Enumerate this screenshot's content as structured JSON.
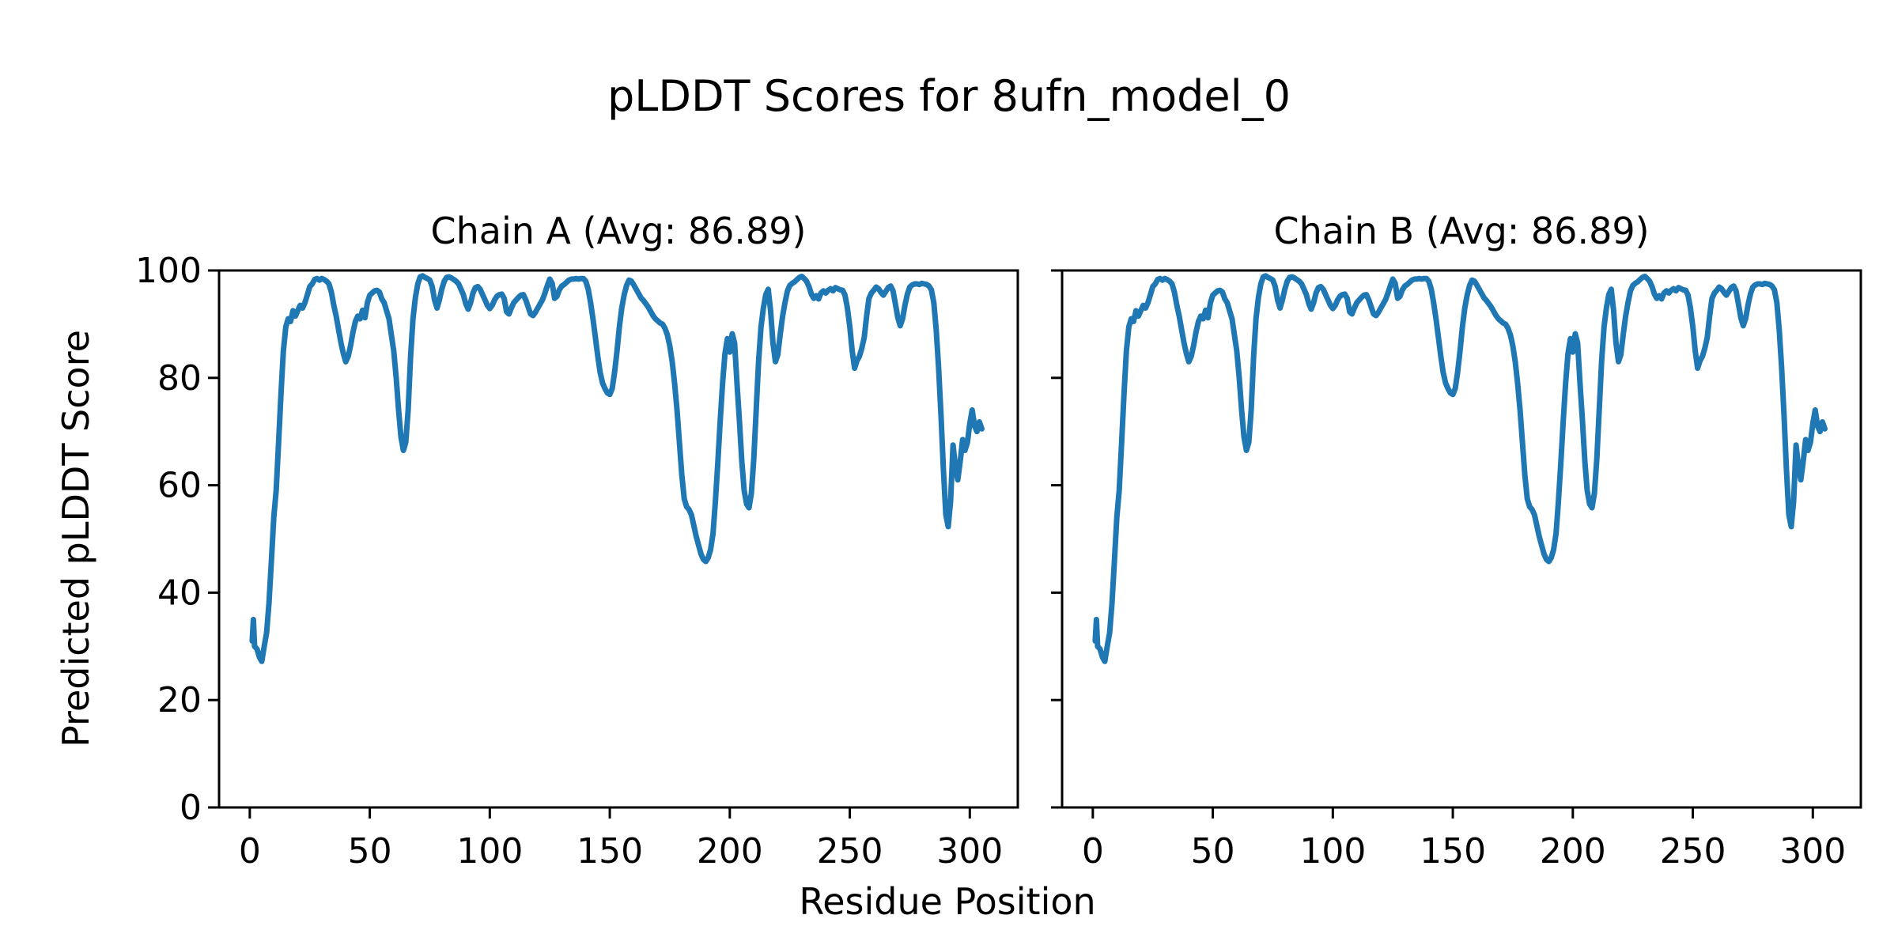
{
  "figure": {
    "title": "pLDDT Scores for 8ufn_model_0",
    "x_axis_label": "Residue Position",
    "y_axis_label": "Predicted pLDDT Score"
  },
  "chart_data": {
    "type": "line",
    "title": "pLDDT Scores for 8ufn_model_0",
    "xlabel": "Residue Position",
    "ylabel": "Predicted pLDDT Score",
    "line_color": "#1f77b4",
    "background": "#ffffff",
    "grid": false,
    "legend_position": "none",
    "xlim": [
      -12.8,
      320
    ],
    "ylim": [
      0,
      100
    ],
    "xticks": [
      0,
      50,
      100,
      150,
      200,
      250,
      300
    ],
    "yticks": [
      0,
      20,
      40,
      60,
      80,
      100
    ],
    "panels": [
      {
        "title": "Chain A (Avg: 86.89)",
        "chain": "A",
        "avg": 86.89,
        "show_y_tick_labels": true
      },
      {
        "title": "Chain B (Avg: 86.89)",
        "chain": "B",
        "avg": 86.89,
        "show_y_tick_labels": false
      }
    ],
    "note": "Both panels plot the identical residue/pLDDT series (homodimer chains A and B).",
    "points": [
      [
        1,
        31
      ],
      [
        1.5,
        35
      ],
      [
        2,
        30
      ],
      [
        3,
        29.5
      ],
      [
        4,
        28
      ],
      [
        5,
        27.2
      ],
      [
        6,
        30
      ],
      [
        7,
        32.5
      ],
      [
        8,
        38
      ],
      [
        9,
        46
      ],
      [
        10,
        54
      ],
      [
        11,
        59
      ],
      [
        12,
        68
      ],
      [
        13,
        77
      ],
      [
        14,
        85
      ],
      [
        15,
        89.5
      ],
      [
        16,
        91
      ],
      [
        17,
        90.5
      ],
      [
        18,
        92.5
      ],
      [
        19,
        91.5
      ],
      [
        20,
        92.5
      ],
      [
        21,
        93.5
      ],
      [
        22,
        93
      ],
      [
        23,
        94
      ],
      [
        24,
        95.5
      ],
      [
        25,
        97
      ],
      [
        26,
        97.5
      ],
      [
        27,
        98.3
      ],
      [
        28,
        98.5
      ],
      [
        29,
        98.2
      ],
      [
        30,
        98.5
      ],
      [
        31,
        98.3
      ],
      [
        32,
        98
      ],
      [
        33,
        97.5
      ],
      [
        34,
        96
      ],
      [
        35,
        93.5
      ],
      [
        36,
        91.5
      ],
      [
        37,
        89
      ],
      [
        38,
        86.5
      ],
      [
        39,
        84.5
      ],
      [
        40,
        83
      ],
      [
        41,
        84
      ],
      [
        42,
        86
      ],
      [
        43,
        88.5
      ],
      [
        44,
        90.5
      ],
      [
        45,
        91.5
      ],
      [
        46,
        91
      ],
      [
        47,
        92.6
      ],
      [
        48,
        91.2
      ],
      [
        49,
        94
      ],
      [
        50,
        95.4
      ],
      [
        51,
        95.8
      ],
      [
        52,
        96.2
      ],
      [
        53,
        96.3
      ],
      [
        54,
        96
      ],
      [
        55,
        94.7
      ],
      [
        56,
        94
      ],
      [
        57,
        92.5
      ],
      [
        58,
        91
      ],
      [
        59,
        88
      ],
      [
        60,
        85
      ],
      [
        61,
        80
      ],
      [
        62,
        74
      ],
      [
        63,
        69
      ],
      [
        64,
        66.5
      ],
      [
        65,
        68
      ],
      [
        66,
        74
      ],
      [
        67,
        84
      ],
      [
        68,
        91
      ],
      [
        69,
        95
      ],
      [
        70,
        97.5
      ],
      [
        71,
        98.8
      ],
      [
        72,
        99
      ],
      [
        73,
        98.7
      ],
      [
        74,
        98.5
      ],
      [
        75,
        98.2
      ],
      [
        76,
        97
      ],
      [
        77,
        94.5
      ],
      [
        78,
        93
      ],
      [
        79,
        94.5
      ],
      [
        80,
        96.5
      ],
      [
        81,
        98
      ],
      [
        82,
        98.7
      ],
      [
        83,
        98.8
      ],
      [
        84,
        98.6
      ],
      [
        85,
        98.3
      ],
      [
        86,
        98
      ],
      [
        87,
        97.5
      ],
      [
        88,
        96.5
      ],
      [
        89,
        95.5
      ],
      [
        90,
        93.8
      ],
      [
        91,
        92.8
      ],
      [
        92,
        94
      ],
      [
        93,
        95.8
      ],
      [
        94,
        96.8
      ],
      [
        95,
        97
      ],
      [
        96,
        96.5
      ],
      [
        97,
        95.5
      ],
      [
        98,
        94.5
      ],
      [
        99,
        93.5
      ],
      [
        100,
        92.9
      ],
      [
        101,
        93.5
      ],
      [
        102,
        94.5
      ],
      [
        103,
        95.2
      ],
      [
        104,
        95.5
      ],
      [
        105,
        95.6
      ],
      [
        106,
        94.8
      ],
      [
        107,
        92.3
      ],
      [
        108,
        91.9
      ],
      [
        109,
        93
      ],
      [
        110,
        94
      ],
      [
        111,
        94.5
      ],
      [
        112,
        95
      ],
      [
        113,
        95.4
      ],
      [
        114,
        95.5
      ],
      [
        115,
        94.5
      ],
      [
        116,
        93.2
      ],
      [
        117,
        91.9
      ],
      [
        118,
        91.6
      ],
      [
        119,
        92.2
      ],
      [
        120,
        93
      ],
      [
        121,
        93.8
      ],
      [
        122,
        94.6
      ],
      [
        123,
        95.8
      ],
      [
        124,
        97.2
      ],
      [
        125,
        98.4
      ],
      [
        126,
        97.6
      ],
      [
        127,
        94.8
      ],
      [
        128,
        95.2
      ],
      [
        129,
        96.4
      ],
      [
        130,
        97.1
      ],
      [
        131,
        97.4
      ],
      [
        132,
        97.8
      ],
      [
        133,
        98.2
      ],
      [
        134,
        98.4
      ],
      [
        135,
        98.4
      ],
      [
        136,
        98.5
      ],
      [
        137,
        98.4
      ],
      [
        138,
        98.5
      ],
      [
        139,
        98.5
      ],
      [
        140,
        98
      ],
      [
        141,
        96.5
      ],
      [
        142,
        94
      ],
      [
        143,
        91
      ],
      [
        144,
        87.5
      ],
      [
        145,
        84
      ],
      [
        146,
        81
      ],
      [
        147,
        79
      ],
      [
        148,
        78
      ],
      [
        149,
        77.2
      ],
      [
        150,
        76.9
      ],
      [
        151,
        78
      ],
      [
        152,
        81
      ],
      [
        153,
        85
      ],
      [
        154,
        89.5
      ],
      [
        155,
        93
      ],
      [
        156,
        95.5
      ],
      [
        157,
        97.2
      ],
      [
        158,
        98.2
      ],
      [
        159,
        98
      ],
      [
        160,
        97.3
      ],
      [
        161,
        96.5
      ],
      [
        162,
        95.7
      ],
      [
        163,
        94.9
      ],
      [
        164,
        94.4
      ],
      [
        165,
        93.8
      ],
      [
        166,
        93.2
      ],
      [
        167,
        92.4
      ],
      [
        168,
        91.6
      ],
      [
        169,
        91
      ],
      [
        170,
        90.6
      ],
      [
        171,
        90.2
      ],
      [
        172,
        90
      ],
      [
        173,
        89.2
      ],
      [
        174,
        88
      ],
      [
        175,
        86
      ],
      [
        176,
        83
      ],
      [
        177,
        79
      ],
      [
        178,
        74
      ],
      [
        179,
        68
      ],
      [
        180,
        62
      ],
      [
        181,
        57.5
      ],
      [
        182,
        56
      ],
      [
        183,
        55.5
      ],
      [
        184,
        54.5
      ],
      [
        185,
        52.5
      ],
      [
        186,
        50.5
      ],
      [
        187,
        48.8
      ],
      [
        188,
        47.2
      ],
      [
        189,
        46.2
      ],
      [
        190,
        45.8
      ],
      [
        191,
        46.5
      ],
      [
        192,
        48
      ],
      [
        193,
        51
      ],
      [
        194,
        57
      ],
      [
        195,
        64
      ],
      [
        196,
        72
      ],
      [
        197,
        79
      ],
      [
        198,
        84.5
      ],
      [
        199,
        87.3
      ],
      [
        200,
        84.8
      ],
      [
        201,
        88.2
      ],
      [
        202,
        86.5
      ],
      [
        203,
        79
      ],
      [
        204,
        72
      ],
      [
        205,
        64.5
      ],
      [
        206,
        59
      ],
      [
        207,
        56.5
      ],
      [
        208,
        55.8
      ],
      [
        209,
        58.5
      ],
      [
        210,
        65
      ],
      [
        211,
        74
      ],
      [
        212,
        83
      ],
      [
        213,
        89.5
      ],
      [
        214,
        93
      ],
      [
        215,
        95.5
      ],
      [
        216,
        96.5
      ],
      [
        217,
        92.5
      ],
      [
        218,
        86.5
      ],
      [
        219,
        83
      ],
      [
        220,
        84.3
      ],
      [
        221,
        88
      ],
      [
        222,
        91.5
      ],
      [
        223,
        94
      ],
      [
        224,
        96.2
      ],
      [
        225,
        97.2
      ],
      [
        226,
        97.6
      ],
      [
        227,
        97.9
      ],
      [
        228,
        98.3
      ],
      [
        229,
        98.7
      ],
      [
        230,
        98.9
      ],
      [
        231,
        98.5
      ],
      [
        232,
        98
      ],
      [
        233,
        97
      ],
      [
        234,
        95.6
      ],
      [
        235,
        94.8
      ],
      [
        236,
        95.3
      ],
      [
        237,
        94.7
      ],
      [
        238,
        95.8
      ],
      [
        239,
        96.2
      ],
      [
        240,
        95.8
      ],
      [
        241,
        96.3
      ],
      [
        242,
        96.6
      ],
      [
        243,
        96.2
      ],
      [
        244,
        96.8
      ],
      [
        245,
        96.6
      ],
      [
        246,
        96.4
      ],
      [
        247,
        96.3
      ],
      [
        248,
        95.4
      ],
      [
        249,
        93
      ],
      [
        250,
        89.5
      ],
      [
        251,
        85
      ],
      [
        252,
        81.8
      ],
      [
        253,
        83.2
      ],
      [
        254,
        84
      ],
      [
        255,
        85.5
      ],
      [
        256,
        87.5
      ],
      [
        257,
        91.5
      ],
      [
        258,
        94.8
      ],
      [
        259,
        95.8
      ],
      [
        260,
        96.3
      ],
      [
        261,
        96.9
      ],
      [
        262,
        96.6
      ],
      [
        263,
        95.9
      ],
      [
        264,
        95.4
      ],
      [
        265,
        96.1
      ],
      [
        266,
        96.8
      ],
      [
        267,
        97.1
      ],
      [
        268,
        96.2
      ],
      [
        269,
        93.8
      ],
      [
        270,
        91.2
      ],
      [
        271,
        89.7
      ],
      [
        272,
        91
      ],
      [
        273,
        93.6
      ],
      [
        274,
        95.6
      ],
      [
        275,
        96.9
      ],
      [
        276,
        97.3
      ],
      [
        277,
        97.5
      ],
      [
        278,
        97.5
      ],
      [
        279,
        97.4
      ],
      [
        280,
        97.6
      ],
      [
        281,
        97.5
      ],
      [
        282,
        97.4
      ],
      [
        283,
        97.1
      ],
      [
        284,
        96.4
      ],
      [
        285,
        94
      ],
      [
        286,
        89
      ],
      [
        287,
        82
      ],
      [
        288,
        73
      ],
      [
        289,
        63
      ],
      [
        290,
        54.5
      ],
      [
        291,
        52.3
      ],
      [
        292,
        57
      ],
      [
        293,
        67.5
      ],
      [
        294,
        63.5
      ],
      [
        295,
        61
      ],
      [
        296,
        64.5
      ],
      [
        297,
        68.5
      ],
      [
        298,
        66.5
      ],
      [
        299,
        68
      ],
      [
        300,
        71.5
      ],
      [
        301,
        74
      ],
      [
        302,
        71
      ],
      [
        303,
        70
      ],
      [
        304,
        71.8
      ],
      [
        305,
        70.5
      ]
    ]
  }
}
